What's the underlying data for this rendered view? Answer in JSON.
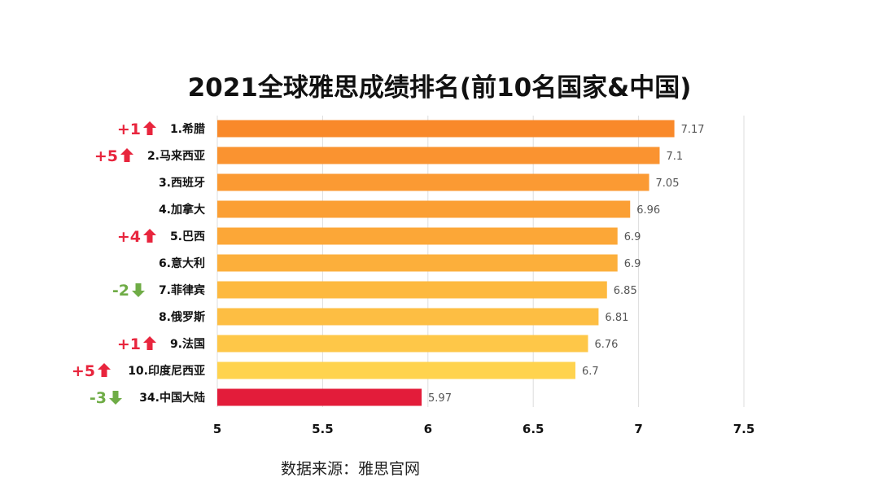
{
  "chart_data": {
    "type": "bar",
    "orientation": "horizontal",
    "title": "2021全球雅思成绩排名(前10名国家&中国)",
    "categories": [
      "1.希腊",
      "2.马来西亚",
      "3.西班牙",
      "4.加拿大",
      "5.巴西",
      "6.意大利",
      "7.菲律宾",
      "8.俄罗斯",
      "9.法国",
      "10.印度尼西亚",
      "34.中国大陆"
    ],
    "values": [
      7.17,
      7.1,
      7.05,
      6.96,
      6.9,
      6.9,
      6.85,
      6.81,
      6.76,
      6.7,
      5.97
    ],
    "value_labels": [
      "7.17",
      "7.1",
      "7.05",
      "6.96",
      "6.9",
      "6.9",
      "6.85",
      "6.81",
      "6.76",
      "6.7",
      "5.97"
    ],
    "rank_changes": [
      "+1",
      "+5",
      "",
      "",
      "+4",
      "",
      "-2",
      "",
      "+1",
      "+5",
      "-3"
    ],
    "change_directions": [
      "up",
      "up",
      "",
      "",
      "up",
      "",
      "down",
      "",
      "up",
      "up",
      "down"
    ],
    "xlim": [
      5,
      7.5
    ],
    "xticks": [
      "5",
      "5.5",
      "6",
      "6.5",
      "7",
      "7.5"
    ],
    "grid": "vertical",
    "bar_colors": [
      "#F9892A",
      "#FA9330",
      "#FB9A33",
      "#FB9F34",
      "#FCA737",
      "#FCAF3B",
      "#FDB93F",
      "#FDBE43",
      "#FEC748",
      "#FFD34E",
      "#E31C3A"
    ],
    "up_color": "#E8253D",
    "down_color": "#6FAC46"
  },
  "footer": {
    "source": "数据来源：雅思官网"
  }
}
